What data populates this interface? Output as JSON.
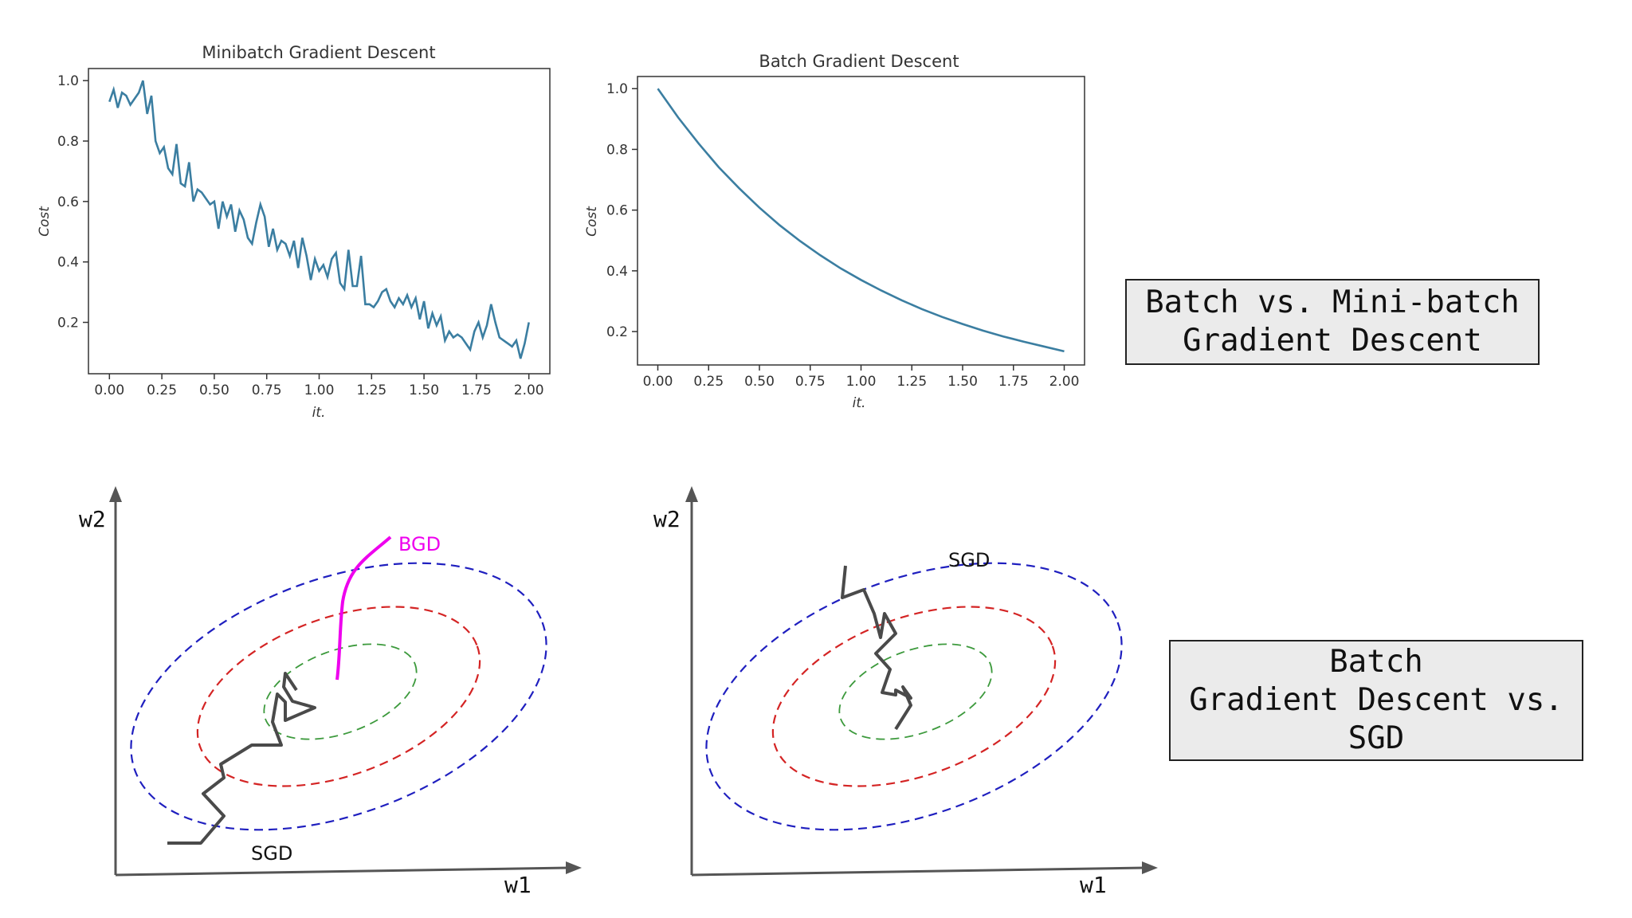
{
  "chart_data": [
    {
      "type": "line",
      "title": "Minibatch Gradient Descent",
      "xlabel": "it.",
      "ylabel": "Cost",
      "xlim": [
        -0.1,
        2.1
      ],
      "ylim": [
        0.03,
        1.04
      ],
      "xticks": [
        "0.00",
        "0.25",
        "0.50",
        "0.75",
        "1.00",
        "1.25",
        "1.50",
        "1.75",
        "2.00"
      ],
      "yticks": [
        "0.2",
        "0.4",
        "0.6",
        "0.8",
        "1.0"
      ],
      "x": [
        0.0,
        0.02,
        0.04,
        0.06,
        0.08,
        0.1,
        0.12,
        0.14,
        0.16,
        0.18,
        0.2,
        0.22,
        0.24,
        0.26,
        0.28,
        0.3,
        0.32,
        0.34,
        0.36,
        0.38,
        0.4,
        0.42,
        0.44,
        0.46,
        0.48,
        0.5,
        0.52,
        0.54,
        0.56,
        0.58,
        0.6,
        0.62,
        0.64,
        0.66,
        0.68,
        0.7,
        0.72,
        0.74,
        0.76,
        0.78,
        0.8,
        0.82,
        0.84,
        0.86,
        0.88,
        0.9,
        0.92,
        0.94,
        0.96,
        0.98,
        1.0,
        1.02,
        1.04,
        1.06,
        1.08,
        1.1,
        1.12,
        1.14,
        1.16,
        1.18,
        1.2,
        1.22,
        1.24,
        1.26,
        1.28,
        1.3,
        1.32,
        1.34,
        1.36,
        1.38,
        1.4,
        1.42,
        1.44,
        1.46,
        1.48,
        1.5,
        1.52,
        1.54,
        1.56,
        1.58,
        1.6,
        1.62,
        1.64,
        1.66,
        1.68,
        1.7,
        1.72,
        1.74,
        1.76,
        1.78,
        1.8,
        1.82,
        1.84,
        1.86,
        1.88,
        1.9,
        1.92,
        1.94,
        1.96,
        1.98,
        2.0
      ],
      "series": [
        {
          "values": [
            0.93,
            0.97,
            0.91,
            0.96,
            0.95,
            0.92,
            0.94,
            0.96,
            1.0,
            0.89,
            0.95,
            0.8,
            0.76,
            0.78,
            0.71,
            0.69,
            0.79,
            0.66,
            0.65,
            0.73,
            0.6,
            0.64,
            0.63,
            0.61,
            0.59,
            0.6,
            0.51,
            0.6,
            0.55,
            0.59,
            0.5,
            0.57,
            0.54,
            0.48,
            0.46,
            0.53,
            0.59,
            0.55,
            0.45,
            0.51,
            0.44,
            0.47,
            0.46,
            0.42,
            0.47,
            0.38,
            0.48,
            0.42,
            0.34,
            0.41,
            0.37,
            0.39,
            0.35,
            0.41,
            0.43,
            0.33,
            0.31,
            0.44,
            0.32,
            0.32,
            0.42,
            0.26,
            0.26,
            0.25,
            0.27,
            0.3,
            0.31,
            0.27,
            0.25,
            0.28,
            0.26,
            0.29,
            0.25,
            0.28,
            0.21,
            0.27,
            0.18,
            0.23,
            0.19,
            0.22,
            0.14,
            0.17,
            0.15,
            0.16,
            0.15,
            0.13,
            0.11,
            0.17,
            0.2,
            0.15,
            0.19,
            0.26,
            0.2,
            0.15,
            0.14,
            0.13,
            0.12,
            0.14,
            0.08,
            0.13,
            0.2
          ]
        }
      ],
      "line_color": "#3b7ea1"
    },
    {
      "type": "line",
      "title": "Batch Gradient Descent",
      "xlabel": "it.",
      "ylabel": "Cost",
      "xlim": [
        -0.1,
        2.1
      ],
      "ylim": [
        0.09,
        1.04
      ],
      "xticks": [
        "0.00",
        "0.25",
        "0.50",
        "0.75",
        "1.00",
        "1.25",
        "1.50",
        "1.75",
        "2.00"
      ],
      "yticks": [
        "0.2",
        "0.4",
        "0.6",
        "0.8",
        "1.0"
      ],
      "x": [
        0.0,
        0.1,
        0.2,
        0.3,
        0.4,
        0.5,
        0.6,
        0.7,
        0.8,
        0.9,
        1.0,
        1.1,
        1.2,
        1.3,
        1.4,
        1.5,
        1.6,
        1.7,
        1.8,
        1.9,
        2.0
      ],
      "series": [
        {
          "values": [
            1.0,
            0.905,
            0.82,
            0.741,
            0.672,
            0.608,
            0.55,
            0.498,
            0.451,
            0.408,
            0.37,
            0.335,
            0.303,
            0.274,
            0.248,
            0.225,
            0.203,
            0.184,
            0.167,
            0.151,
            0.135
          ]
        }
      ],
      "line_color": "#3b7ea1"
    }
  ],
  "diagrams": {
    "left": {
      "axis_x_label": "w1",
      "axis_y_label": "w2",
      "bgd_label": "BGD",
      "sgd_label": "SGD"
    },
    "right": {
      "axis_x_label": "w1",
      "axis_y_label": "w2",
      "sgd_label": "SGD"
    },
    "contour_colors": [
      "#1f1fbf",
      "#d42424",
      "#3d9a3d"
    ],
    "bgd_color": "#ee00ee",
    "sgd_path_color": "#4a4a4a"
  },
  "callouts": {
    "top": [
      "Batch vs. Mini-batch",
      "Gradient Descent"
    ],
    "bottom": [
      "Batch",
      "Gradient Descent vs.",
      "SGD"
    ]
  }
}
